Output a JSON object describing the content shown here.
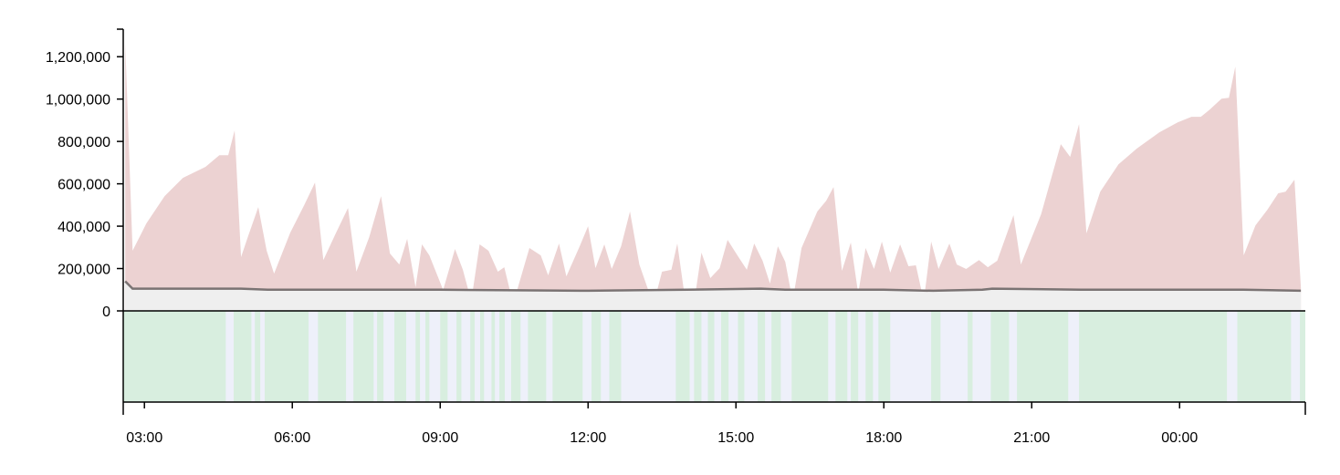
{
  "chart_data": {
    "type": "area",
    "xlim": [
      2.57,
      26.55
    ],
    "ylim": [
      0,
      1330000
    ],
    "xticks": [
      {
        "value": 3,
        "label": "03:00"
      },
      {
        "value": 6,
        "label": "06:00"
      },
      {
        "value": 9,
        "label": "09:00"
      },
      {
        "value": 12,
        "label": "12:00"
      },
      {
        "value": 15,
        "label": "15:00"
      },
      {
        "value": 18,
        "label": "18:00"
      },
      {
        "value": 21,
        "label": "21:00"
      },
      {
        "value": 24,
        "label": "00:00"
      }
    ],
    "yticks": [
      0,
      {
        "value": 200000,
        "label": "200,000"
      },
      {
        "value": 400000,
        "label": "400,000"
      },
      {
        "value": 600000,
        "label": "600,000"
      },
      {
        "value": 800000,
        "label": "800,000"
      },
      {
        "value": 1000000,
        "label": "1,000,000"
      },
      {
        "value": 1200000,
        "label": "1,200,000"
      }
    ],
    "series": [
      {
        "color": "#ecd2d2",
        "x": [
          2.61,
          2.76,
          3.04,
          3.41,
          3.78,
          4.24,
          4.52,
          4.7,
          4.83,
          4.96,
          5.11,
          5.31,
          5.48,
          5.63,
          5.96,
          6.24,
          6.46,
          6.63,
          6.89,
          7.13,
          7.3,
          7.56,
          7.8,
          7.98,
          8.17,
          8.33,
          8.5,
          8.63,
          8.78,
          9.06,
          9.3,
          9.46,
          9.63,
          9.8,
          9.98,
          10.17,
          10.3,
          10.48,
          10.81,
          11.04,
          11.19,
          11.41,
          11.56,
          11.83,
          12.0,
          12.15,
          12.33,
          12.48,
          12.67,
          12.85,
          13.04,
          13.22,
          13.37,
          13.5,
          13.69,
          13.81,
          13.96,
          14.15,
          14.3,
          14.48,
          14.67,
          14.83,
          15.04,
          15.22,
          15.37,
          15.54,
          15.69,
          15.85,
          16.0,
          16.15,
          16.33,
          16.65,
          16.83,
          16.98,
          17.15,
          17.33,
          17.48,
          17.63,
          17.8,
          17.96,
          18.13,
          18.33,
          18.5,
          18.65,
          18.81,
          18.96,
          19.11,
          19.33,
          19.48,
          19.67,
          19.93,
          20.11,
          20.3,
          20.63,
          20.78,
          21.19,
          21.59,
          21.78,
          21.96,
          22.11,
          22.39,
          22.76,
          23.13,
          23.59,
          23.96,
          24.24,
          24.43,
          24.61,
          24.85,
          25.0,
          25.13,
          25.3,
          25.54,
          25.78,
          26.0,
          26.15,
          26.33,
          26.46
        ],
        "values": [
          1270000,
          284000,
          413000,
          542000,
          628000,
          680000,
          735000,
          735000,
          852000,
          254000,
          357000,
          490000,
          284000,
          176000,
          370000,
          499000,
          606000,
          240000,
          370000,
          486000,
          185000,
          348000,
          542000,
          271000,
          219000,
          340000,
          112000,
          314000,
          262000,
          99000,
          292000,
          194000,
          47000,
          314000,
          284000,
          185000,
          206000,
          34000,
          297000,
          262000,
          168000,
          318000,
          163000,
          305000,
          400000,
          202000,
          314000,
          198000,
          305000,
          469000,
          219000,
          99000,
          69000,
          185000,
          194000,
          318000,
          69000,
          39000,
          275000,
          155000,
          202000,
          335000,
          258000,
          194000,
          318000,
          237000,
          129000,
          305000,
          232000,
          47000,
          297000,
          469000,
          520000,
          585000,
          189000,
          323000,
          82000,
          297000,
          198000,
          327000,
          181000,
          314000,
          211000,
          215000,
          47000,
          327000,
          198000,
          318000,
          219000,
          198000,
          240000,
          206000,
          237000,
          452000,
          219000,
          456000,
          787000,
          727000,
          882000,
          366000,
          563000,
          692000,
          766000,
          843000,
          890000,
          916000,
          916000,
          950000,
          1002000,
          1006000,
          1153000,
          262000,
          404000,
          477000,
          555000,
          563000,
          619000,
          112000
        ]
      },
      {
        "color": "#7a7373",
        "fill": "#efefef",
        "x": [
          2.61,
          2.76,
          4.96,
          5.5,
          9.0,
          12.0,
          14.0,
          15.5,
          16.0,
          18.0,
          19.0,
          20.0,
          20.2,
          22.0,
          25.3,
          26.46
        ],
        "values": [
          140000,
          105000,
          105000,
          100000,
          100000,
          95000,
          100000,
          105000,
          100000,
          100000,
          95000,
          100000,
          105000,
          100000,
          100000,
          95000
        ]
      }
    ],
    "band": {
      "color": "#d8eedf",
      "highlight": "#eef0fa",
      "intervals": [
        [
          4.65,
          4.81
        ],
        [
          5.17,
          5.24
        ],
        [
          5.35,
          5.44
        ],
        [
          6.33,
          6.52
        ],
        [
          7.09,
          7.24
        ],
        [
          7.65,
          7.72
        ],
        [
          7.85,
          8.07
        ],
        [
          8.31,
          8.5
        ],
        [
          8.59,
          8.7
        ],
        [
          8.78,
          9.0
        ],
        [
          9.15,
          9.33
        ],
        [
          9.43,
          9.61
        ],
        [
          9.7,
          9.81
        ],
        [
          9.89,
          10.04
        ],
        [
          10.11,
          10.2
        ],
        [
          10.31,
          10.44
        ],
        [
          10.63,
          10.78
        ],
        [
          11.15,
          11.28
        ],
        [
          11.89,
          12.07
        ],
        [
          12.26,
          12.43
        ],
        [
          12.67,
          13.78
        ],
        [
          14.06,
          14.15
        ],
        [
          14.3,
          14.43
        ],
        [
          14.56,
          14.7
        ],
        [
          14.85,
          15.04
        ],
        [
          15.17,
          15.44
        ],
        [
          15.59,
          15.72
        ],
        [
          15.91,
          16.13
        ],
        [
          16.87,
          17.02
        ],
        [
          17.26,
          17.33
        ],
        [
          17.48,
          17.63
        ],
        [
          17.78,
          17.89
        ],
        [
          18.13,
          18.96
        ],
        [
          19.15,
          19.7
        ],
        [
          19.8,
          20.17
        ],
        [
          20.54,
          20.7
        ],
        [
          21.74,
          21.96
        ],
        [
          24.96,
          25.17
        ],
        [
          26.26,
          26.44
        ]
      ]
    }
  }
}
